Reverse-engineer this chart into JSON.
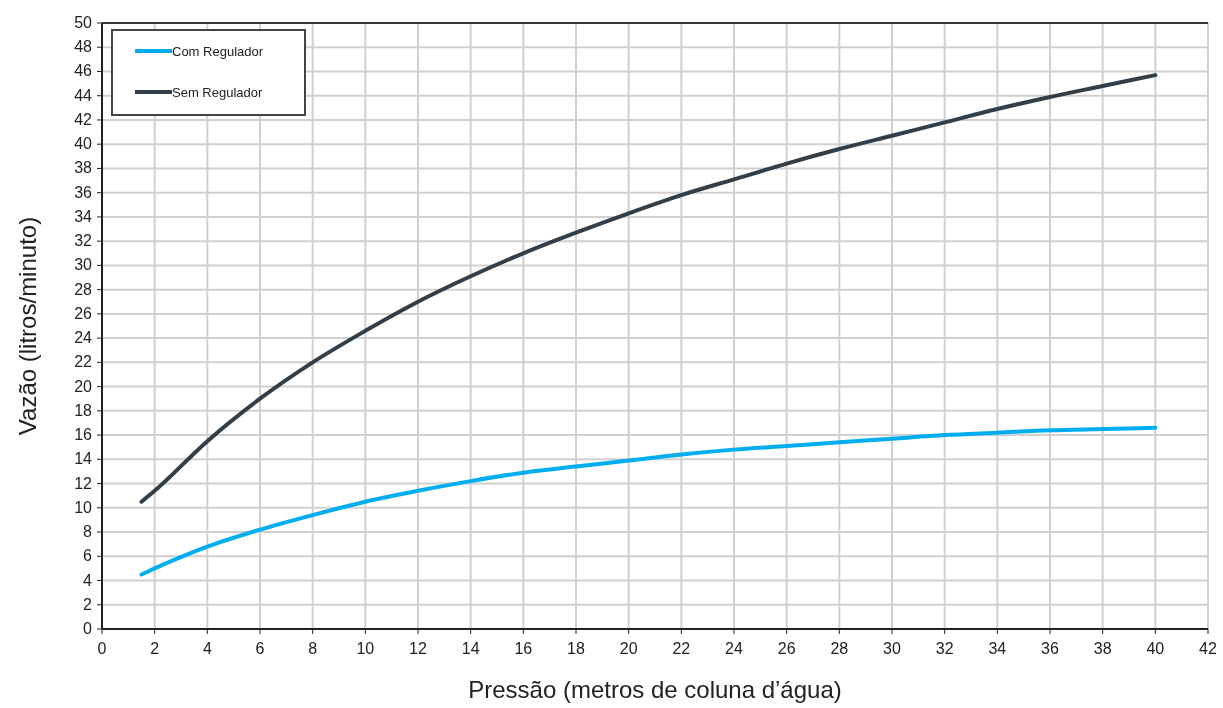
{
  "chart_data": {
    "type": "line",
    "xlabel": "Pressão (metros de coluna d’água)",
    "ylabel": "Vazão (litros/minuto)",
    "xlim": [
      0,
      42
    ],
    "xticks": [
      0,
      2,
      4,
      6,
      8,
      10,
      12,
      14,
      16,
      18,
      20,
      22,
      24,
      26,
      28,
      30,
      32,
      34,
      36,
      38,
      40,
      42
    ],
    "ylim": [
      0,
      50
    ],
    "yticks": [
      0,
      2,
      4,
      6,
      8,
      10,
      12,
      14,
      16,
      18,
      20,
      22,
      24,
      26,
      28,
      30,
      32,
      34,
      36,
      38,
      40,
      42,
      44,
      46,
      48,
      50
    ],
    "grid": true,
    "legend": "top left",
    "marker": "none",
    "line_style": "solid",
    "x": [
      1.5,
      2,
      4,
      6,
      8,
      10,
      12,
      14,
      16,
      18,
      20,
      22,
      24,
      26,
      28,
      30,
      32,
      34,
      36,
      38,
      40
    ],
    "series": [
      {
        "name": "Com Regulador",
        "color": "#00aeef",
        "values": [
          4.5,
          5.0,
          6.8,
          8.2,
          9.4,
          10.5,
          11.4,
          12.2,
          12.9,
          13.4,
          13.9,
          14.4,
          14.8,
          15.1,
          15.4,
          15.7,
          16.0,
          16.2,
          16.4,
          16.5,
          16.6
        ]
      },
      {
        "name": "Sem Regulador",
        "color": "#333f48",
        "values": [
          10.5,
          11.4,
          15.5,
          19,
          22,
          24.6,
          27,
          29.1,
          31,
          32.7,
          34.3,
          35.8,
          37.1,
          38.4,
          39.6,
          40.7,
          41.8,
          42.9,
          43.9,
          44.8,
          45.7
        ]
      }
    ]
  }
}
